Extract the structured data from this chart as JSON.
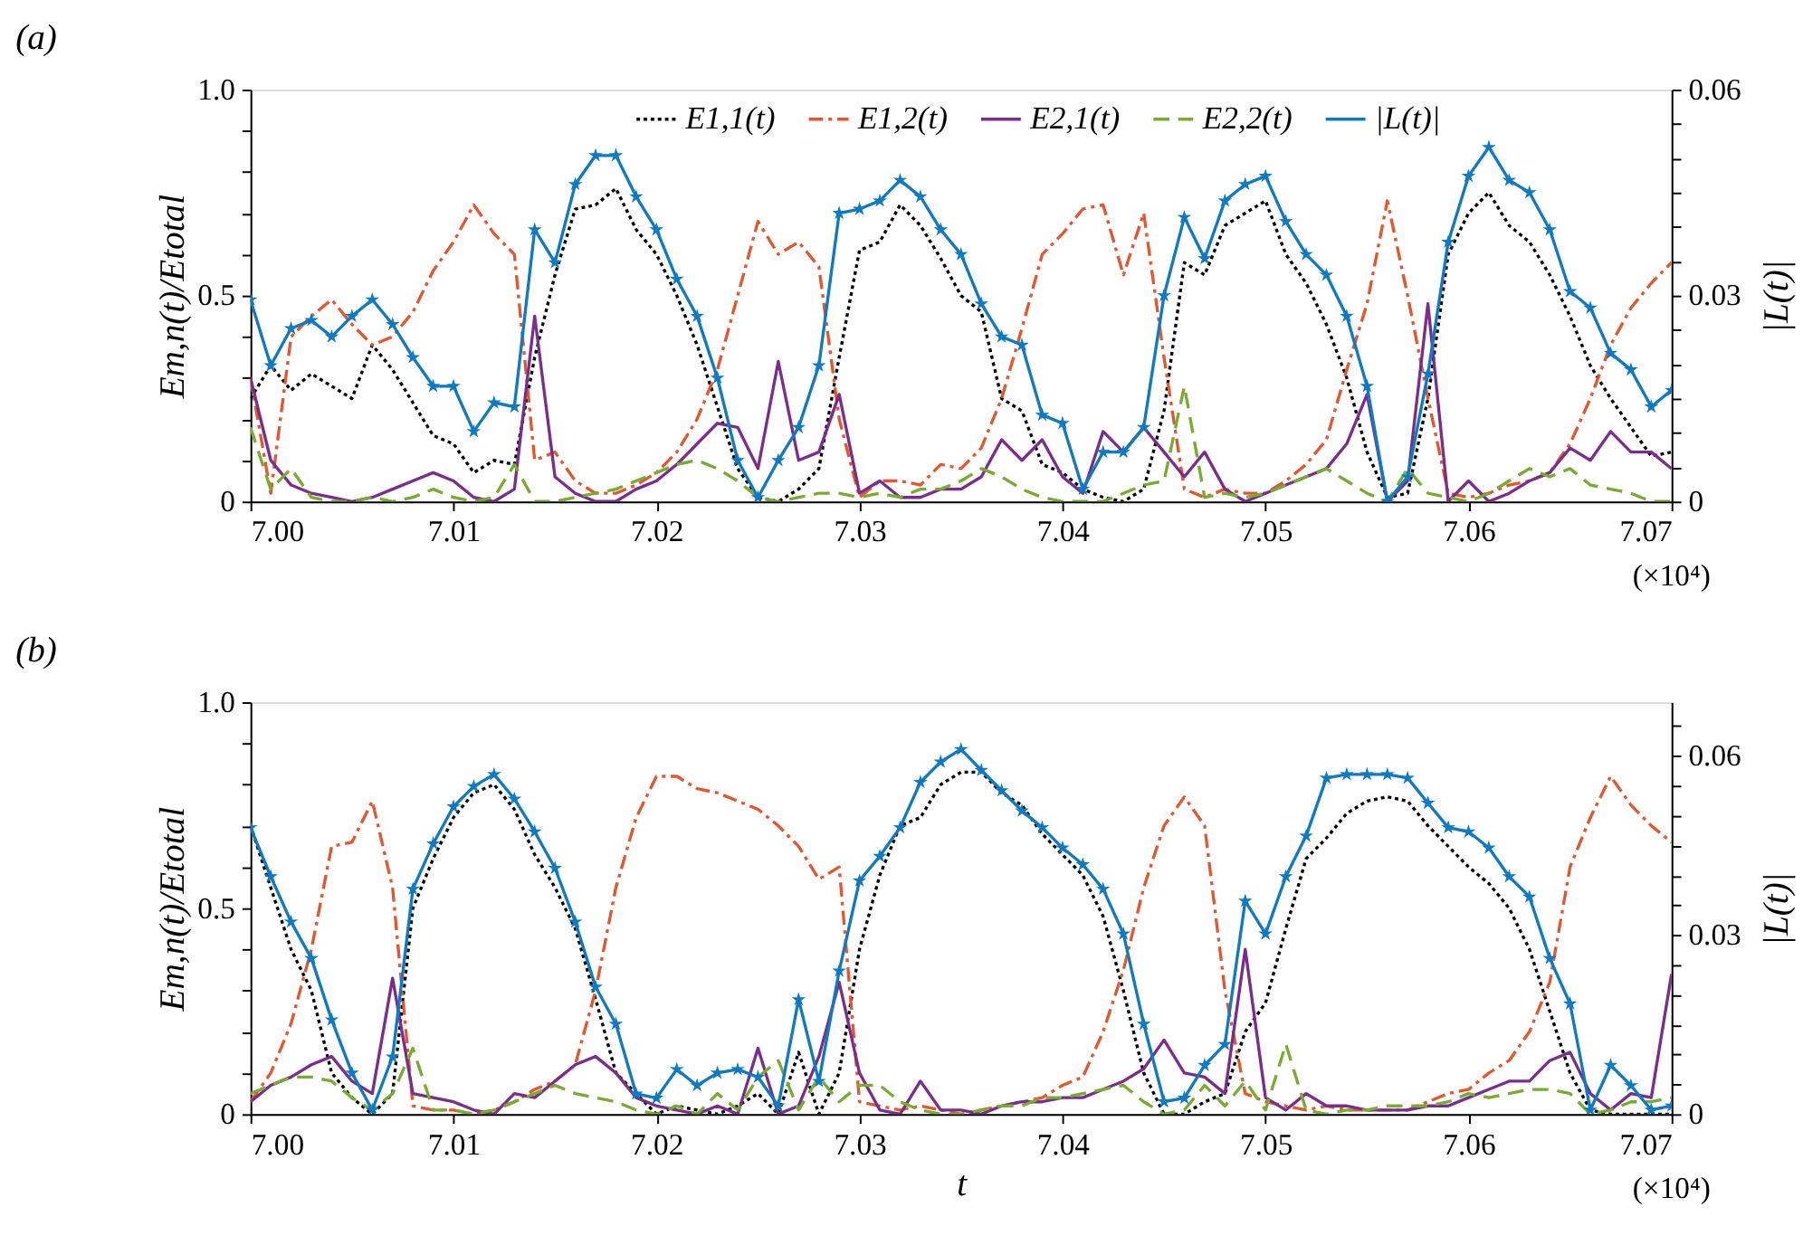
{
  "chart_data": [
    {
      "type": "line",
      "title": "(a)",
      "ylabel": "Em,n(t)/Etotal",
      "y2label": "|L(t)|",
      "annotations": [
        "(×10⁴)"
      ],
      "legend": "top",
      "grid": false,
      "x": [
        7.0,
        7.001,
        7.002,
        7.003,
        7.004,
        7.005,
        7.006,
        7.007,
        7.008,
        7.009,
        7.01,
        7.011,
        7.012,
        7.013,
        7.014,
        7.015,
        7.016,
        7.017,
        7.018,
        7.019,
        7.02,
        7.021,
        7.022,
        7.023,
        7.024,
        7.025,
        7.026,
        7.027,
        7.028,
        7.029,
        7.03,
        7.031,
        7.032,
        7.033,
        7.034,
        7.035,
        7.036,
        7.037,
        7.038,
        7.039,
        7.04,
        7.041,
        7.042,
        7.043,
        7.044,
        7.045,
        7.046,
        7.047,
        7.048,
        7.049,
        7.05,
        7.051,
        7.052,
        7.053,
        7.054,
        7.055,
        7.056,
        7.057,
        7.058,
        7.059,
        7.06,
        7.061,
        7.062,
        7.063,
        7.064,
        7.065,
        7.066,
        7.067,
        7.068,
        7.069,
        7.07
      ],
      "xlim": [
        7.0,
        7.07
      ],
      "xticks": [
        {
          "value": 7.0,
          "label": "7.00"
        },
        {
          "value": 7.01,
          "label": "7.01"
        },
        {
          "value": 7.02,
          "label": "7.02"
        },
        {
          "value": 7.03,
          "label": "7.03"
        },
        {
          "value": 7.04,
          "label": "7.04"
        },
        {
          "value": 7.05,
          "label": "7.05"
        },
        {
          "value": 7.06,
          "label": "7.06"
        },
        {
          "value": 7.07,
          "label": "7.07"
        }
      ],
      "ylim": [
        0,
        1.0
      ],
      "yticks": [
        0,
        {
          "value": 0.1,
          "label": null
        },
        {
          "value": 0.2,
          "label": null
        },
        {
          "value": 0.3,
          "label": null
        },
        {
          "value": 0.4,
          "label": null
        },
        0.5,
        {
          "value": 0.6,
          "label": null
        },
        {
          "value": 0.7,
          "label": null
        },
        {
          "value": 0.8,
          "label": null
        },
        {
          "value": 0.9,
          "label": null
        },
        {
          "value": 1.0,
          "label": "1.0"
        }
      ],
      "y2lim": [
        0,
        0.06
      ],
      "y2ticks": [
        0,
        {
          "value": 0.005,
          "label": null
        },
        {
          "value": 0.01,
          "label": null
        },
        {
          "value": 0.015,
          "label": null
        },
        {
          "value": 0.02,
          "label": null
        },
        {
          "value": 0.025,
          "label": null
        },
        0.03,
        {
          "value": 0.035,
          "label": null
        },
        {
          "value": 0.04,
          "label": null
        },
        {
          "value": 0.045,
          "label": null
        },
        {
          "value": 0.05,
          "label": null
        },
        {
          "value": 0.055,
          "label": null
        },
        0.06
      ],
      "series": [
        {
          "name": "E1,1(t)",
          "color": "#000000",
          "line_style": "dotted",
          "values": [
            0.25,
            0.33,
            0.27,
            0.31,
            0.28,
            0.25,
            0.38,
            0.32,
            0.24,
            0.16,
            0.14,
            0.07,
            0.1,
            0.09,
            0.35,
            0.55,
            0.71,
            0.72,
            0.76,
            0.66,
            0.6,
            0.5,
            0.38,
            0.23,
            0.08,
            0.01,
            0.0,
            0.03,
            0.08,
            0.35,
            0.61,
            0.63,
            0.72,
            0.67,
            0.59,
            0.5,
            0.46,
            0.25,
            0.22,
            0.09,
            0.07,
            0.03,
            0.01,
            0.0,
            0.03,
            0.22,
            0.58,
            0.55,
            0.67,
            0.7,
            0.73,
            0.6,
            0.53,
            0.43,
            0.3,
            0.12,
            0.01,
            0.02,
            0.25,
            0.6,
            0.7,
            0.75,
            0.67,
            0.63,
            0.55,
            0.45,
            0.33,
            0.25,
            0.18,
            0.11,
            0.12
          ]
        },
        {
          "name": "E1,2(t)",
          "color": "#e4572e",
          "line_style": "dashdot",
          "values": [
            0.3,
            0.02,
            0.4,
            0.45,
            0.49,
            0.43,
            0.38,
            0.4,
            0.46,
            0.56,
            0.63,
            0.72,
            0.65,
            0.6,
            0.1,
            0.12,
            0.05,
            0.02,
            0.02,
            0.04,
            0.07,
            0.12,
            0.2,
            0.32,
            0.5,
            0.68,
            0.6,
            0.63,
            0.57,
            0.2,
            0.01,
            0.05,
            0.05,
            0.04,
            0.09,
            0.08,
            0.13,
            0.25,
            0.42,
            0.6,
            0.65,
            0.71,
            0.72,
            0.55,
            0.7,
            0.35,
            0.03,
            0.01,
            0.03,
            0.02,
            0.02,
            0.05,
            0.09,
            0.15,
            0.32,
            0.48,
            0.73,
            0.5,
            0.25,
            0.02,
            0.01,
            0.02,
            0.04,
            0.05,
            0.07,
            0.14,
            0.25,
            0.38,
            0.47,
            0.53,
            0.58
          ]
        },
        {
          "name": "E2,1(t)",
          "color": "#7b2d8e",
          "line_style": "solid",
          "values": [
            0.3,
            0.1,
            0.04,
            0.02,
            0.01,
            0.0,
            0.01,
            0.03,
            0.05,
            0.07,
            0.05,
            0.01,
            0.0,
            0.03,
            0.45,
            0.06,
            0.02,
            0.0,
            0.0,
            0.03,
            0.05,
            0.09,
            0.14,
            0.19,
            0.18,
            0.08,
            0.34,
            0.1,
            0.12,
            0.26,
            0.02,
            0.05,
            0.01,
            0.01,
            0.03,
            0.03,
            0.06,
            0.15,
            0.1,
            0.15,
            0.06,
            0.02,
            0.17,
            0.12,
            0.18,
            0.12,
            0.06,
            0.12,
            0.03,
            0.0,
            0.02,
            0.04,
            0.06,
            0.08,
            0.14,
            0.26,
            0.0,
            0.05,
            0.48,
            0.0,
            0.05,
            0.0,
            0.02,
            0.05,
            0.07,
            0.13,
            0.1,
            0.17,
            0.12,
            0.12,
            0.08
          ]
        },
        {
          "name": "E2,2(t)",
          "color": "#77ac30",
          "line_style": "dashed",
          "values": [
            0.18,
            0.03,
            0.08,
            0.01,
            0.0,
            0.0,
            0.01,
            0.0,
            0.01,
            0.03,
            0.01,
            0.0,
            0.01,
            0.09,
            0.0,
            0.0,
            0.01,
            0.02,
            0.03,
            0.05,
            0.07,
            0.09,
            0.1,
            0.08,
            0.05,
            0.01,
            0.0,
            0.01,
            0.02,
            0.02,
            0.01,
            0.02,
            0.01,
            0.03,
            0.03,
            0.05,
            0.08,
            0.06,
            0.03,
            0.01,
            0.0,
            0.0,
            0.0,
            0.02,
            0.04,
            0.05,
            0.28,
            0.01,
            0.02,
            0.01,
            0.02,
            0.04,
            0.06,
            0.08,
            0.05,
            0.02,
            0.0,
            0.08,
            0.02,
            0.01,
            0.0,
            0.02,
            0.05,
            0.08,
            0.06,
            0.08,
            0.04,
            0.03,
            0.02,
            0.0,
            0.0
          ]
        },
        {
          "name": "|L(t)|",
          "color": "#0e7ac4",
          "line_style": "solid",
          "marker": "star",
          "axis": "y2",
          "values": [
            0.0294,
            0.0198,
            0.0252,
            0.0264,
            0.024,
            0.027,
            0.0294,
            0.0258,
            0.021,
            0.0168,
            0.0168,
            0.0102,
            0.0144,
            0.0138,
            0.0396,
            0.0348,
            0.0462,
            0.0504,
            0.0504,
            0.0444,
            0.0396,
            0.0324,
            0.027,
            0.018,
            0.006,
            0.0006,
            0.006,
            0.0108,
            0.0198,
            0.042,
            0.0426,
            0.0438,
            0.0468,
            0.0444,
            0.0396,
            0.036,
            0.0288,
            0.024,
            0.0228,
            0.0126,
            0.0114,
            0.0018,
            0.0072,
            0.0072,
            0.0108,
            0.03,
            0.0414,
            0.0354,
            0.0438,
            0.0462,
            0.0474,
            0.0408,
            0.036,
            0.033,
            0.027,
            0.0168,
            0.0,
            0.0036,
            0.0186,
            0.0378,
            0.0474,
            0.0516,
            0.0468,
            0.045,
            0.0396,
            0.0306,
            0.0282,
            0.0216,
            0.0192,
            0.0138,
            0.0162
          ]
        }
      ]
    },
    {
      "type": "line",
      "title": "(b)",
      "xlabel": "t",
      "ylabel": "Em,n(t)/Etotal",
      "y2label": "|L(t)|",
      "annotations": [
        "(×10⁴)"
      ],
      "grid": false,
      "x": [
        7.0,
        7.001,
        7.002,
        7.003,
        7.004,
        7.005,
        7.006,
        7.007,
        7.008,
        7.009,
        7.01,
        7.011,
        7.012,
        7.013,
        7.014,
        7.015,
        7.016,
        7.017,
        7.018,
        7.019,
        7.02,
        7.021,
        7.022,
        7.023,
        7.024,
        7.025,
        7.026,
        7.027,
        7.028,
        7.029,
        7.03,
        7.031,
        7.032,
        7.033,
        7.034,
        7.035,
        7.036,
        7.037,
        7.038,
        7.039,
        7.04,
        7.041,
        7.042,
        7.043,
        7.044,
        7.045,
        7.046,
        7.047,
        7.048,
        7.049,
        7.05,
        7.051,
        7.052,
        7.053,
        7.054,
        7.055,
        7.056,
        7.057,
        7.058,
        7.059,
        7.06,
        7.061,
        7.062,
        7.063,
        7.064,
        7.065,
        7.066,
        7.067,
        7.068,
        7.069,
        7.07
      ],
      "xlim": [
        7.0,
        7.07
      ],
      "xticks": [
        {
          "value": 7.0,
          "label": "7.00"
        },
        {
          "value": 7.01,
          "label": "7.01"
        },
        {
          "value": 7.02,
          "label": "7.02"
        },
        {
          "value": 7.03,
          "label": "7.03"
        },
        {
          "value": 7.04,
          "label": "7.04"
        },
        {
          "value": 7.05,
          "label": "7.05"
        },
        {
          "value": 7.06,
          "label": "7.06"
        },
        {
          "value": 7.07,
          "label": "7.07"
        }
      ],
      "ylim": [
        0,
        1.0
      ],
      "yticks": [
        0,
        {
          "value": 0.1,
          "label": null
        },
        {
          "value": 0.2,
          "label": null
        },
        {
          "value": 0.3,
          "label": null
        },
        {
          "value": 0.4,
          "label": null
        },
        0.5,
        {
          "value": 0.6,
          "label": null
        },
        {
          "value": 0.7,
          "label": null
        },
        {
          "value": 0.8,
          "label": null
        },
        {
          "value": 0.9,
          "label": null
        },
        {
          "value": 1.0,
          "label": "1.0"
        }
      ],
      "y2lim": [
        0,
        0.069
      ],
      "y2ticks": [
        0,
        {
          "value": 0.005,
          "label": null
        },
        {
          "value": 0.01,
          "label": null
        },
        {
          "value": 0.015,
          "label": null
        },
        {
          "value": 0.02,
          "label": null
        },
        {
          "value": 0.025,
          "label": null
        },
        0.03,
        {
          "value": 0.035,
          "label": null
        },
        {
          "value": 0.04,
          "label": null
        },
        {
          "value": 0.045,
          "label": null
        },
        {
          "value": 0.05,
          "label": null
        },
        {
          "value": 0.055,
          "label": null
        },
        0.06,
        {
          "value": 0.065,
          "label": null
        }
      ],
      "series": [
        {
          "color": "#000000",
          "line_style": "dotted",
          "values": [
            0.7,
            0.55,
            0.4,
            0.3,
            0.1,
            0.04,
            0.0,
            0.05,
            0.5,
            0.62,
            0.72,
            0.78,
            0.8,
            0.74,
            0.63,
            0.55,
            0.45,
            0.28,
            0.1,
            0.05,
            0.0,
            0.02,
            0.01,
            0.0,
            0.02,
            0.05,
            0.0,
            0.15,
            0.0,
            0.1,
            0.4,
            0.58,
            0.7,
            0.72,
            0.8,
            0.83,
            0.83,
            0.78,
            0.75,
            0.68,
            0.63,
            0.58,
            0.48,
            0.3,
            0.1,
            0.0,
            0.0,
            0.03,
            0.05,
            0.2,
            0.27,
            0.45,
            0.62,
            0.67,
            0.73,
            0.76,
            0.77,
            0.76,
            0.7,
            0.65,
            0.6,
            0.56,
            0.5,
            0.4,
            0.25,
            0.1,
            0.01,
            0.0,
            0.0,
            0.0,
            0.0
          ]
        },
        {
          "color": "#e4572e",
          "line_style": "dashdot",
          "values": [
            0.03,
            0.1,
            0.22,
            0.4,
            0.65,
            0.66,
            0.76,
            0.55,
            0.02,
            0.01,
            0.01,
            0.0,
            0.01,
            0.03,
            0.06,
            0.08,
            0.12,
            0.3,
            0.55,
            0.72,
            0.82,
            0.82,
            0.79,
            0.78,
            0.76,
            0.74,
            0.7,
            0.65,
            0.57,
            0.6,
            0.03,
            0.02,
            0.01,
            0.02,
            0.01,
            0.0,
            0.01,
            0.02,
            0.03,
            0.04,
            0.07,
            0.09,
            0.2,
            0.35,
            0.55,
            0.7,
            0.77,
            0.7,
            0.3,
            0.05,
            0.03,
            0.02,
            0.01,
            0.02,
            0.01,
            0.01,
            0.01,
            0.01,
            0.03,
            0.05,
            0.06,
            0.1,
            0.13,
            0.2,
            0.32,
            0.6,
            0.72,
            0.82,
            0.75,
            0.7,
            0.66
          ]
        },
        {
          "color": "#7b2d8e",
          "line_style": "solid",
          "values": [
            0.03,
            0.07,
            0.09,
            0.12,
            0.14,
            0.08,
            0.05,
            0.33,
            0.05,
            0.04,
            0.03,
            0.01,
            0.0,
            0.05,
            0.04,
            0.08,
            0.12,
            0.14,
            0.1,
            0.04,
            0.02,
            0.01,
            0.0,
            0.02,
            0.0,
            0.16,
            0.0,
            0.02,
            0.14,
            0.32,
            0.1,
            0.01,
            0.0,
            0.08,
            0.01,
            0.01,
            0.0,
            0.02,
            0.03,
            0.03,
            0.04,
            0.04,
            0.06,
            0.08,
            0.11,
            0.18,
            0.1,
            0.09,
            0.05,
            0.4,
            0.04,
            0.01,
            0.05,
            0.02,
            0.02,
            0.01,
            0.01,
            0.01,
            0.02,
            0.02,
            0.04,
            0.06,
            0.08,
            0.08,
            0.13,
            0.15,
            0.05,
            0.01,
            0.05,
            0.04,
            0.34
          ]
        },
        {
          "color": "#77ac30",
          "line_style": "dashed",
          "values": [
            0.05,
            0.07,
            0.09,
            0.09,
            0.08,
            0.04,
            0.01,
            0.05,
            0.16,
            0.01,
            0.01,
            0.0,
            0.01,
            0.03,
            0.05,
            0.07,
            0.05,
            0.04,
            0.03,
            0.01,
            0.0,
            0.02,
            0.0,
            0.05,
            0.01,
            0.09,
            0.13,
            0.01,
            0.09,
            0.03,
            0.07,
            0.07,
            0.03,
            0.01,
            0.0,
            0.0,
            0.01,
            0.02,
            0.02,
            0.04,
            0.04,
            0.05,
            0.06,
            0.07,
            0.03,
            0.0,
            0.01,
            0.07,
            0.02,
            0.08,
            0.01,
            0.17,
            0.01,
            0.0,
            0.01,
            0.01,
            0.02,
            0.02,
            0.02,
            0.03,
            0.05,
            0.04,
            0.05,
            0.06,
            0.06,
            0.05,
            0.0,
            0.01,
            0.03,
            0.03,
            0.04
          ]
        },
        {
          "color": "#0e7ac4",
          "line_style": "solid",
          "marker": "star",
          "axis": "y2",
          "values": [
            0.048,
            0.0398,
            0.0322,
            0.0261,
            0.0158,
            0.0069,
            0.0007,
            0.0096,
            0.0377,
            0.0453,
            0.0515,
            0.0549,
            0.0569,
            0.0528,
            0.0473,
            0.0412,
            0.0322,
            0.0213,
            0.0151,
            0.0034,
            0.0027,
            0.0075,
            0.0048,
            0.0069,
            0.0075,
            0.0062,
            0.0014,
            0.0192,
            0.0055,
            0.024,
            0.0391,
            0.0432,
            0.048,
            0.0556,
            0.059,
            0.0611,
            0.0576,
            0.0542,
            0.0508,
            0.048,
            0.0446,
            0.0418,
            0.0377,
            0.0302,
            0.0151,
            0.0021,
            0.0027,
            0.0082,
            0.0117,
            0.0357,
            0.0302,
            0.0398,
            0.0466,
            0.0563,
            0.0569,
            0.0569,
            0.0569,
            0.0563,
            0.0521,
            0.048,
            0.0473,
            0.0446,
            0.0398,
            0.0364,
            0.0261,
            0.0185,
            0.0007,
            0.0082,
            0.0048,
            0.0007,
            0.0014
          ]
        }
      ]
    }
  ]
}
